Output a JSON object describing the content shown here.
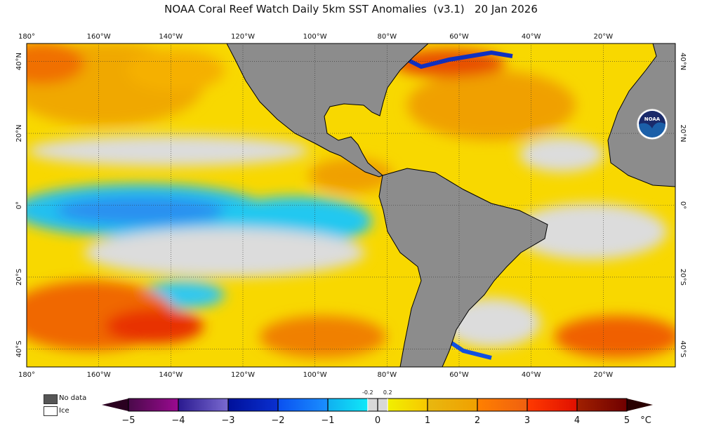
{
  "title": "NOAA Coral Reef Watch Daily 5km SST Anomalies  (v3.1)   20 Jan 2026",
  "map": {
    "lon_range": [
      -180,
      0
    ],
    "lat_range": [
      -45,
      45
    ],
    "lon_labels": [
      "180°",
      "160°W",
      "140°W",
      "120°W",
      "100°W",
      "80°W",
      "60°W",
      "40°W",
      "20°W"
    ],
    "lat_labels_left": [
      "40°N",
      "20°N",
      "0°",
      "20°S",
      "40°S"
    ],
    "lat_labels_right": [
      "40°N",
      "20°N",
      "0°",
      "20°S",
      "40°S"
    ],
    "land_color": "#8c8c8c",
    "logo": "NOAA"
  },
  "legend": {
    "nodata_label": "No data",
    "ice_label": "Ice",
    "nodata_color": "#555555",
    "ice_color": "#ffffff"
  },
  "colorbar": {
    "unit": "°C",
    "ticks": [
      "−5",
      "−4",
      "−3",
      "−2",
      "−1",
      "0",
      "1",
      "2",
      "3",
      "4",
      "5"
    ],
    "small_ticks": [
      "-0.2",
      "0.2"
    ],
    "range": [
      -5,
      5
    ],
    "segments": [
      {
        "from": -5,
        "to": -4,
        "c1": "#4a0a4a",
        "c2": "#9a0a90"
      },
      {
        "from": -4,
        "to": -3,
        "c1": "#2a1a90",
        "c2": "#7a6ad0"
      },
      {
        "from": -3,
        "to": -2,
        "c1": "#00109a",
        "c2": "#0a30d0"
      },
      {
        "from": -2,
        "to": -1,
        "c1": "#0a50f0",
        "c2": "#1a90ff"
      },
      {
        "from": -1,
        "to": -0.2,
        "c1": "#10b0f0",
        "c2": "#10e8f8"
      },
      {
        "from": -0.2,
        "to": 0.2,
        "c1": "#d8d8d8",
        "c2": "#d8d8d8"
      },
      {
        "from": 0.2,
        "to": 1,
        "c1": "#f0f000",
        "c2": "#f8c800"
      },
      {
        "from": 1,
        "to": 2,
        "c1": "#e8b810",
        "c2": "#f0a000"
      },
      {
        "from": 2,
        "to": 3,
        "c1": "#ff8000",
        "c2": "#f06010"
      },
      {
        "from": 3,
        "to": 4,
        "c1": "#ff3a00",
        "c2": "#e01000"
      },
      {
        "from": 4,
        "to": 5,
        "c1": "#a02000",
        "c2": "#700000"
      }
    ],
    "under_color": "#2a0020",
    "over_color": "#2a0000"
  }
}
